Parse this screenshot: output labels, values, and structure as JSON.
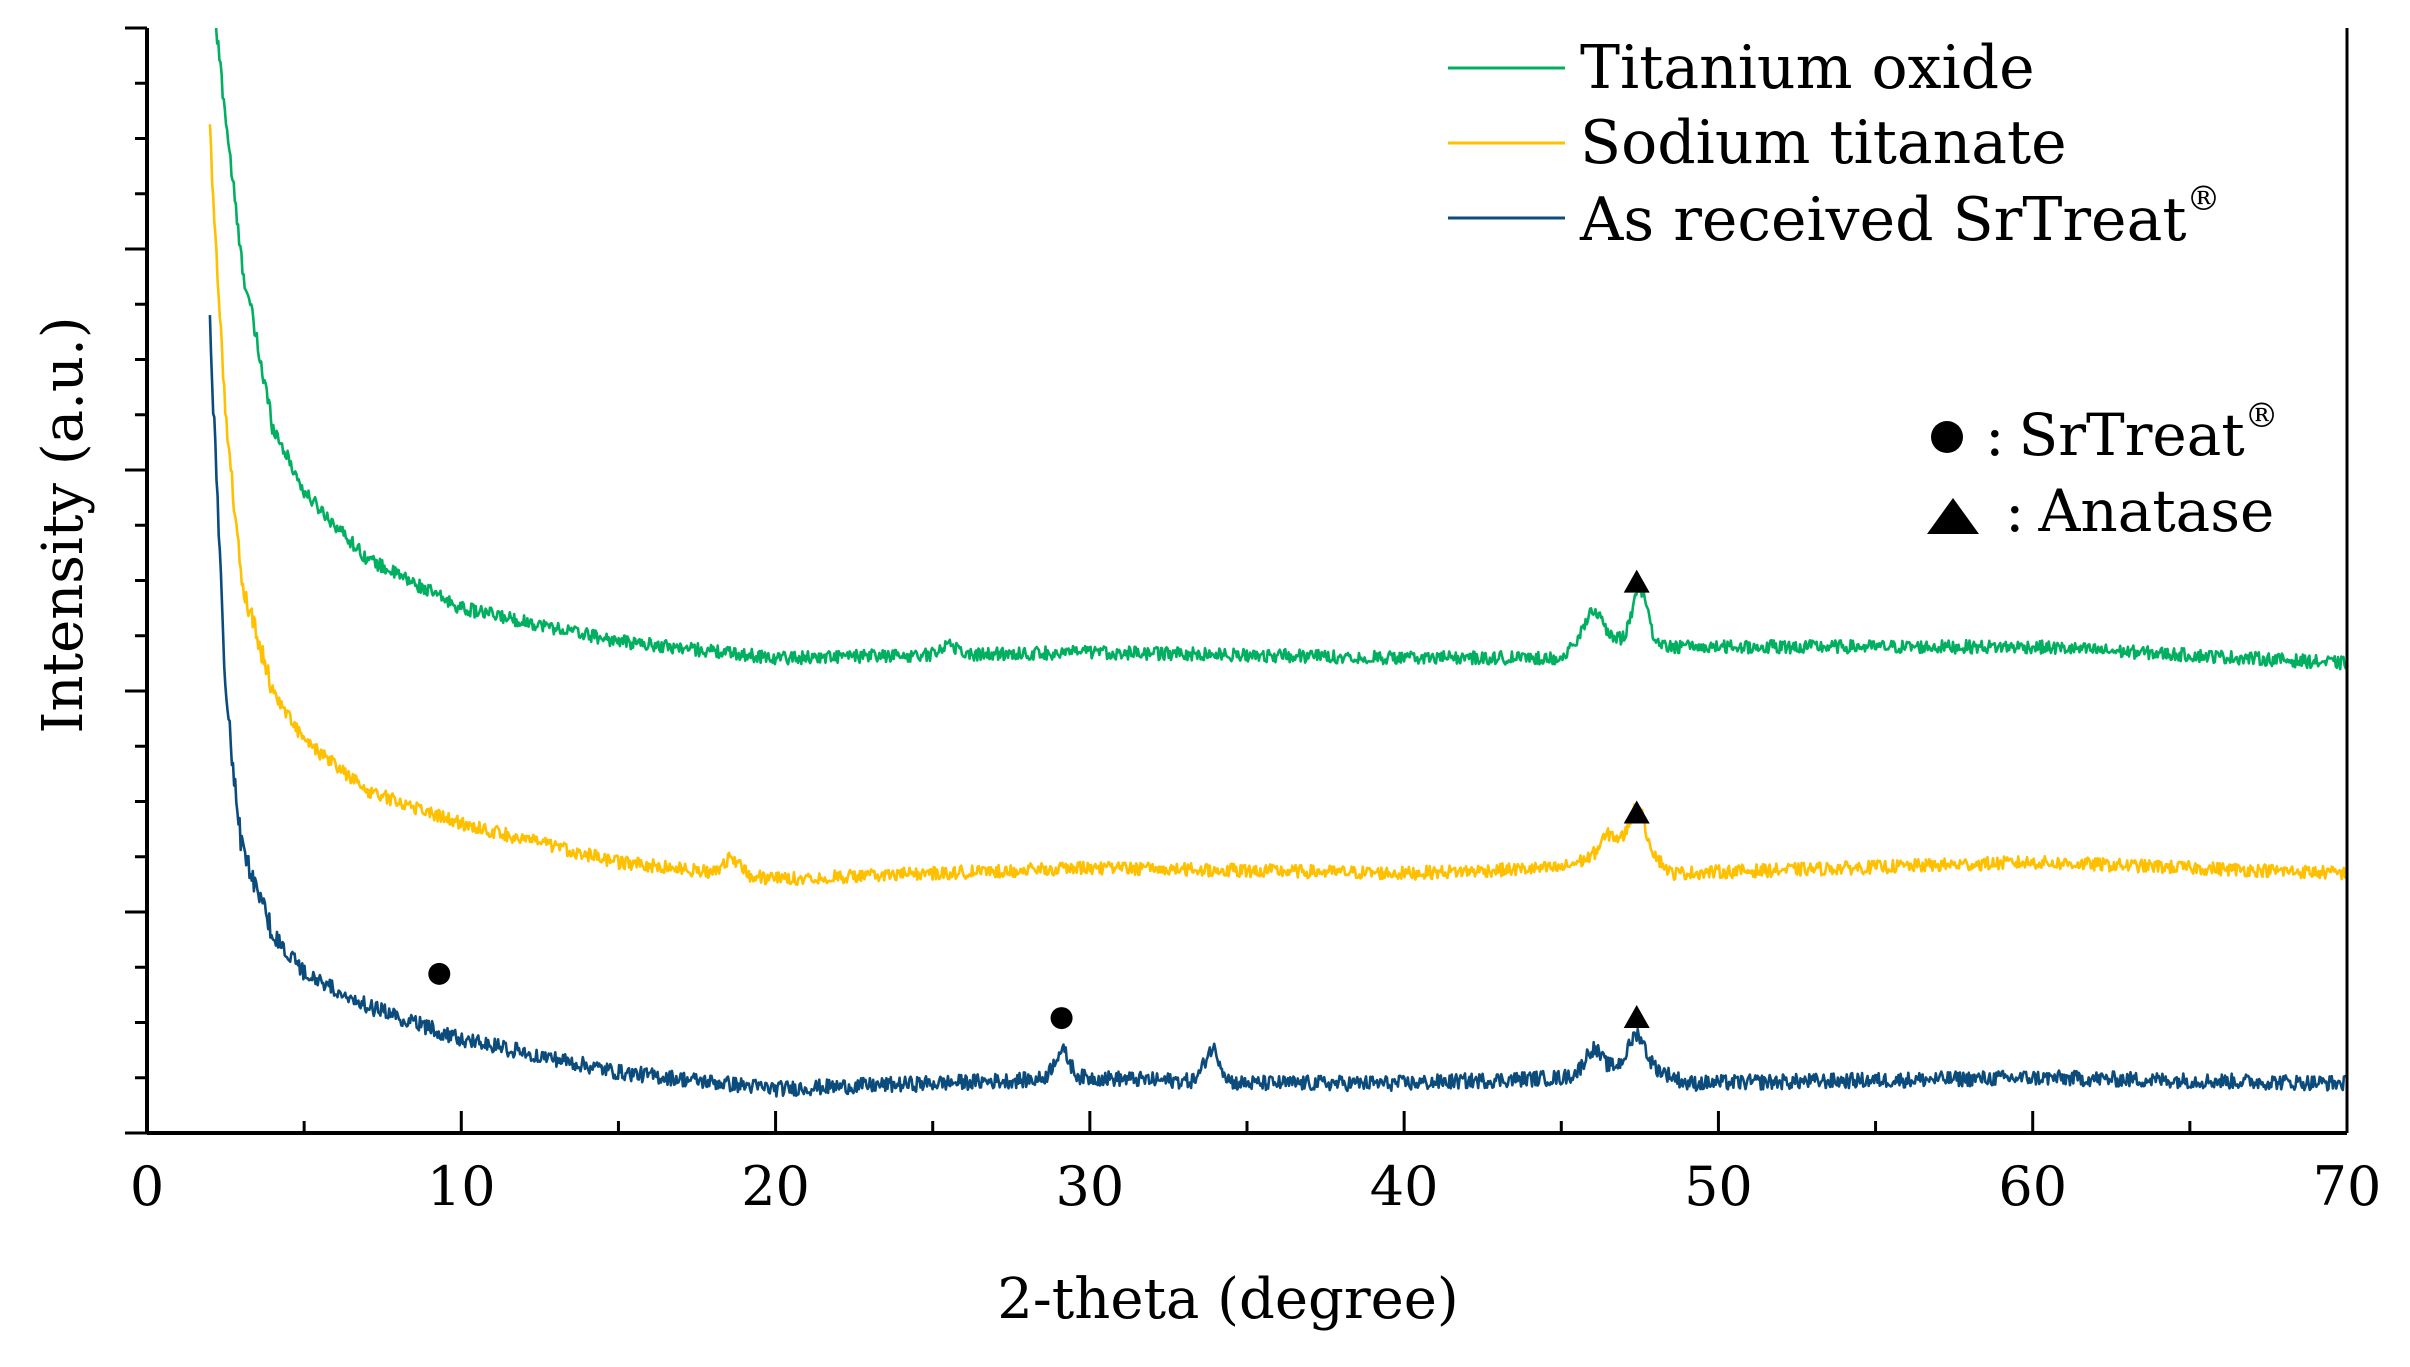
{
  "chart_data": {
    "type": "line",
    "title": "",
    "xlabel": "2-theta (degree)",
    "ylabel": "Intensity (a.u.)",
    "xlim": [
      0,
      70
    ],
    "ylim": [
      0,
      10
    ],
    "xticks": [
      0,
      10,
      20,
      30,
      40,
      50,
      60,
      70
    ],
    "xtick_labels": [
      "0",
      "10",
      "20",
      "30",
      "40",
      "50",
      "60",
      "70"
    ],
    "ytick_labels_shown": false,
    "grid": false,
    "legend_position": "top-right",
    "series": [
      {
        "name": "Titanium oxide",
        "color": "#00b060",
        "start_x": 2.2,
        "start_y": 10.0,
        "keypoints": [
          [
            2.2,
            10.0
          ],
          [
            3,
            7.9
          ],
          [
            4,
            6.4
          ],
          [
            5,
            5.8
          ],
          [
            7,
            5.2
          ],
          [
            10,
            4.75
          ],
          [
            15,
            4.45
          ],
          [
            20,
            4.3
          ],
          [
            30,
            4.35
          ],
          [
            40,
            4.3
          ],
          [
            45,
            4.3
          ],
          [
            46,
            4.55
          ],
          [
            47,
            4.45
          ],
          [
            47.5,
            4.65
          ],
          [
            48,
            4.4
          ],
          [
            50,
            4.4
          ],
          [
            60,
            4.4
          ],
          [
            70,
            4.25
          ]
        ],
        "noise": 0.06,
        "peaks": [
          [
            25.5,
            0.1
          ],
          [
            46.0,
            0.2
          ],
          [
            47.5,
            0.3
          ]
        ]
      },
      {
        "name": "Sodium titanate",
        "color": "#ffc000",
        "start_x": 2.0,
        "start_y": 9.05,
        "keypoints": [
          [
            2.0,
            9.05
          ],
          [
            2.5,
            6.5
          ],
          [
            3,
            5.0
          ],
          [
            4,
            4.0
          ],
          [
            5,
            3.55
          ],
          [
            7,
            3.1
          ],
          [
            10,
            2.8
          ],
          [
            15,
            2.45
          ],
          [
            20,
            2.3
          ],
          [
            30,
            2.4
          ],
          [
            40,
            2.35
          ],
          [
            45,
            2.4
          ],
          [
            47.5,
            2.65
          ],
          [
            48.5,
            2.35
          ],
          [
            60,
            2.45
          ],
          [
            70,
            2.35
          ]
        ],
        "noise": 0.06,
        "peaks": [
          [
            18.6,
            0.15
          ],
          [
            46.5,
            0.15
          ],
          [
            47.4,
            0.3
          ]
        ]
      },
      {
        "name": "As received SrTreat®",
        "color": "#0b4c7d",
        "start_x": 2.0,
        "start_y": 7.3,
        "keypoints": [
          [
            2.0,
            7.3
          ],
          [
            2.5,
            4.0
          ],
          [
            3,
            2.6
          ],
          [
            4,
            1.8
          ],
          [
            5,
            1.45
          ],
          [
            7,
            1.15
          ],
          [
            10,
            0.85
          ],
          [
            15,
            0.55
          ],
          [
            20,
            0.4
          ],
          [
            25,
            0.45
          ],
          [
            30,
            0.5
          ],
          [
            35,
            0.45
          ],
          [
            40,
            0.45
          ],
          [
            45,
            0.5
          ],
          [
            47.5,
            0.65
          ],
          [
            49,
            0.45
          ],
          [
            60,
            0.5
          ],
          [
            70,
            0.45
          ]
        ],
        "noise": 0.07,
        "peaks": [
          [
            29.1,
            0.25
          ],
          [
            33.9,
            0.3
          ],
          [
            46.0,
            0.2
          ],
          [
            47.4,
            0.25
          ]
        ]
      }
    ],
    "legend": [
      {
        "label": "Titanium oxide",
        "color": "#00b060"
      },
      {
        "label": "Sodium titanate",
        "color": "#ffc000"
      },
      {
        "label": "As received SrTreat",
        "sup": "®",
        "color": "#0b4c7d"
      }
    ],
    "marker_legend": [
      {
        "symbol": "circle",
        "label": "SrTreat",
        "sup": "®",
        "sep": ":"
      },
      {
        "symbol": "triangle",
        "label": "Anatase",
        "sep": ":"
      }
    ],
    "annotations": [
      {
        "symbol": "triangle",
        "x": 47.4,
        "y": 4.99
      },
      {
        "symbol": "triangle",
        "x": 47.4,
        "y": 2.9
      },
      {
        "symbol": "triangle",
        "x": 47.4,
        "y": 1.05
      },
      {
        "symbol": "circle",
        "x": 9.3,
        "y": 1.44
      },
      {
        "symbol": "circle",
        "x": 29.1,
        "y": 1.04
      }
    ]
  }
}
